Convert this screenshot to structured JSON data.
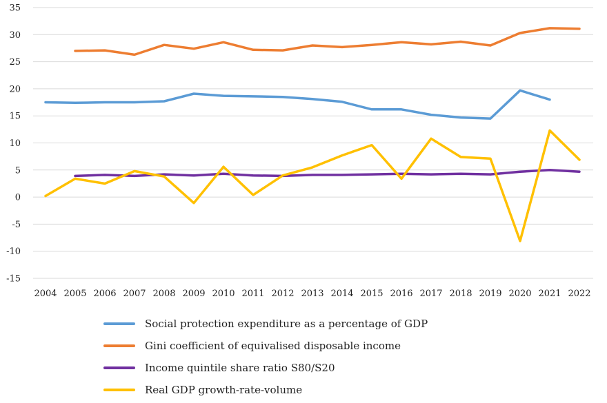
{
  "chart_data": {
    "type": "line",
    "title": "",
    "xlabel": "",
    "ylabel": "",
    "ylim": [
      -15,
      35
    ],
    "yticks": [
      35,
      30,
      25,
      20,
      15,
      10,
      5,
      0,
      -5,
      -10,
      -15
    ],
    "grid": true,
    "legend": "bottom",
    "categories": [
      "2004",
      "2005",
      "2006",
      "2007",
      "2008",
      "2009",
      "2010",
      "2011",
      "2012",
      "2013",
      "2014",
      "2015",
      "2016",
      "2017",
      "2018",
      "2019",
      "2020",
      "2021",
      "2022"
    ],
    "series": [
      {
        "name": "Social protection expenditure as a percentage of GDP",
        "color": "#5b9bd5",
        "values": [
          17.5,
          17.4,
          17.5,
          17.5,
          17.7,
          19.1,
          18.7,
          18.6,
          18.5,
          18.1,
          17.6,
          16.2,
          16.2,
          15.2,
          14.7,
          14.5,
          19.7,
          18.0,
          null
        ]
      },
      {
        "name": "Gini coefficient of equivalised disposable income",
        "color": "#ed7d31",
        "values": [
          null,
          27.0,
          27.1,
          26.3,
          28.1,
          27.4,
          28.6,
          27.2,
          27.1,
          28.0,
          27.7,
          28.1,
          28.6,
          28.2,
          28.7,
          28.0,
          30.3,
          31.2,
          31.1
        ]
      },
      {
        "name": "Income quintile share ratio S80/S20",
        "color": "#7030a0",
        "values": [
          null,
          3.9,
          4.1,
          3.9,
          4.2,
          4.0,
          4.3,
          4.0,
          3.9,
          4.1,
          4.1,
          4.2,
          4.3,
          4.2,
          4.3,
          4.2,
          4.7,
          5.0,
          4.7
        ]
      },
      {
        "name": "Real GDP growth-rate-volume",
        "color": "#ffc000",
        "values": [
          0.2,
          3.4,
          2.5,
          4.8,
          3.8,
          -1.1,
          5.6,
          0.4,
          4.0,
          5.5,
          7.7,
          9.6,
          3.4,
          10.8,
          7.4,
          7.1,
          -8.1,
          12.3,
          6.9
        ]
      }
    ]
  }
}
